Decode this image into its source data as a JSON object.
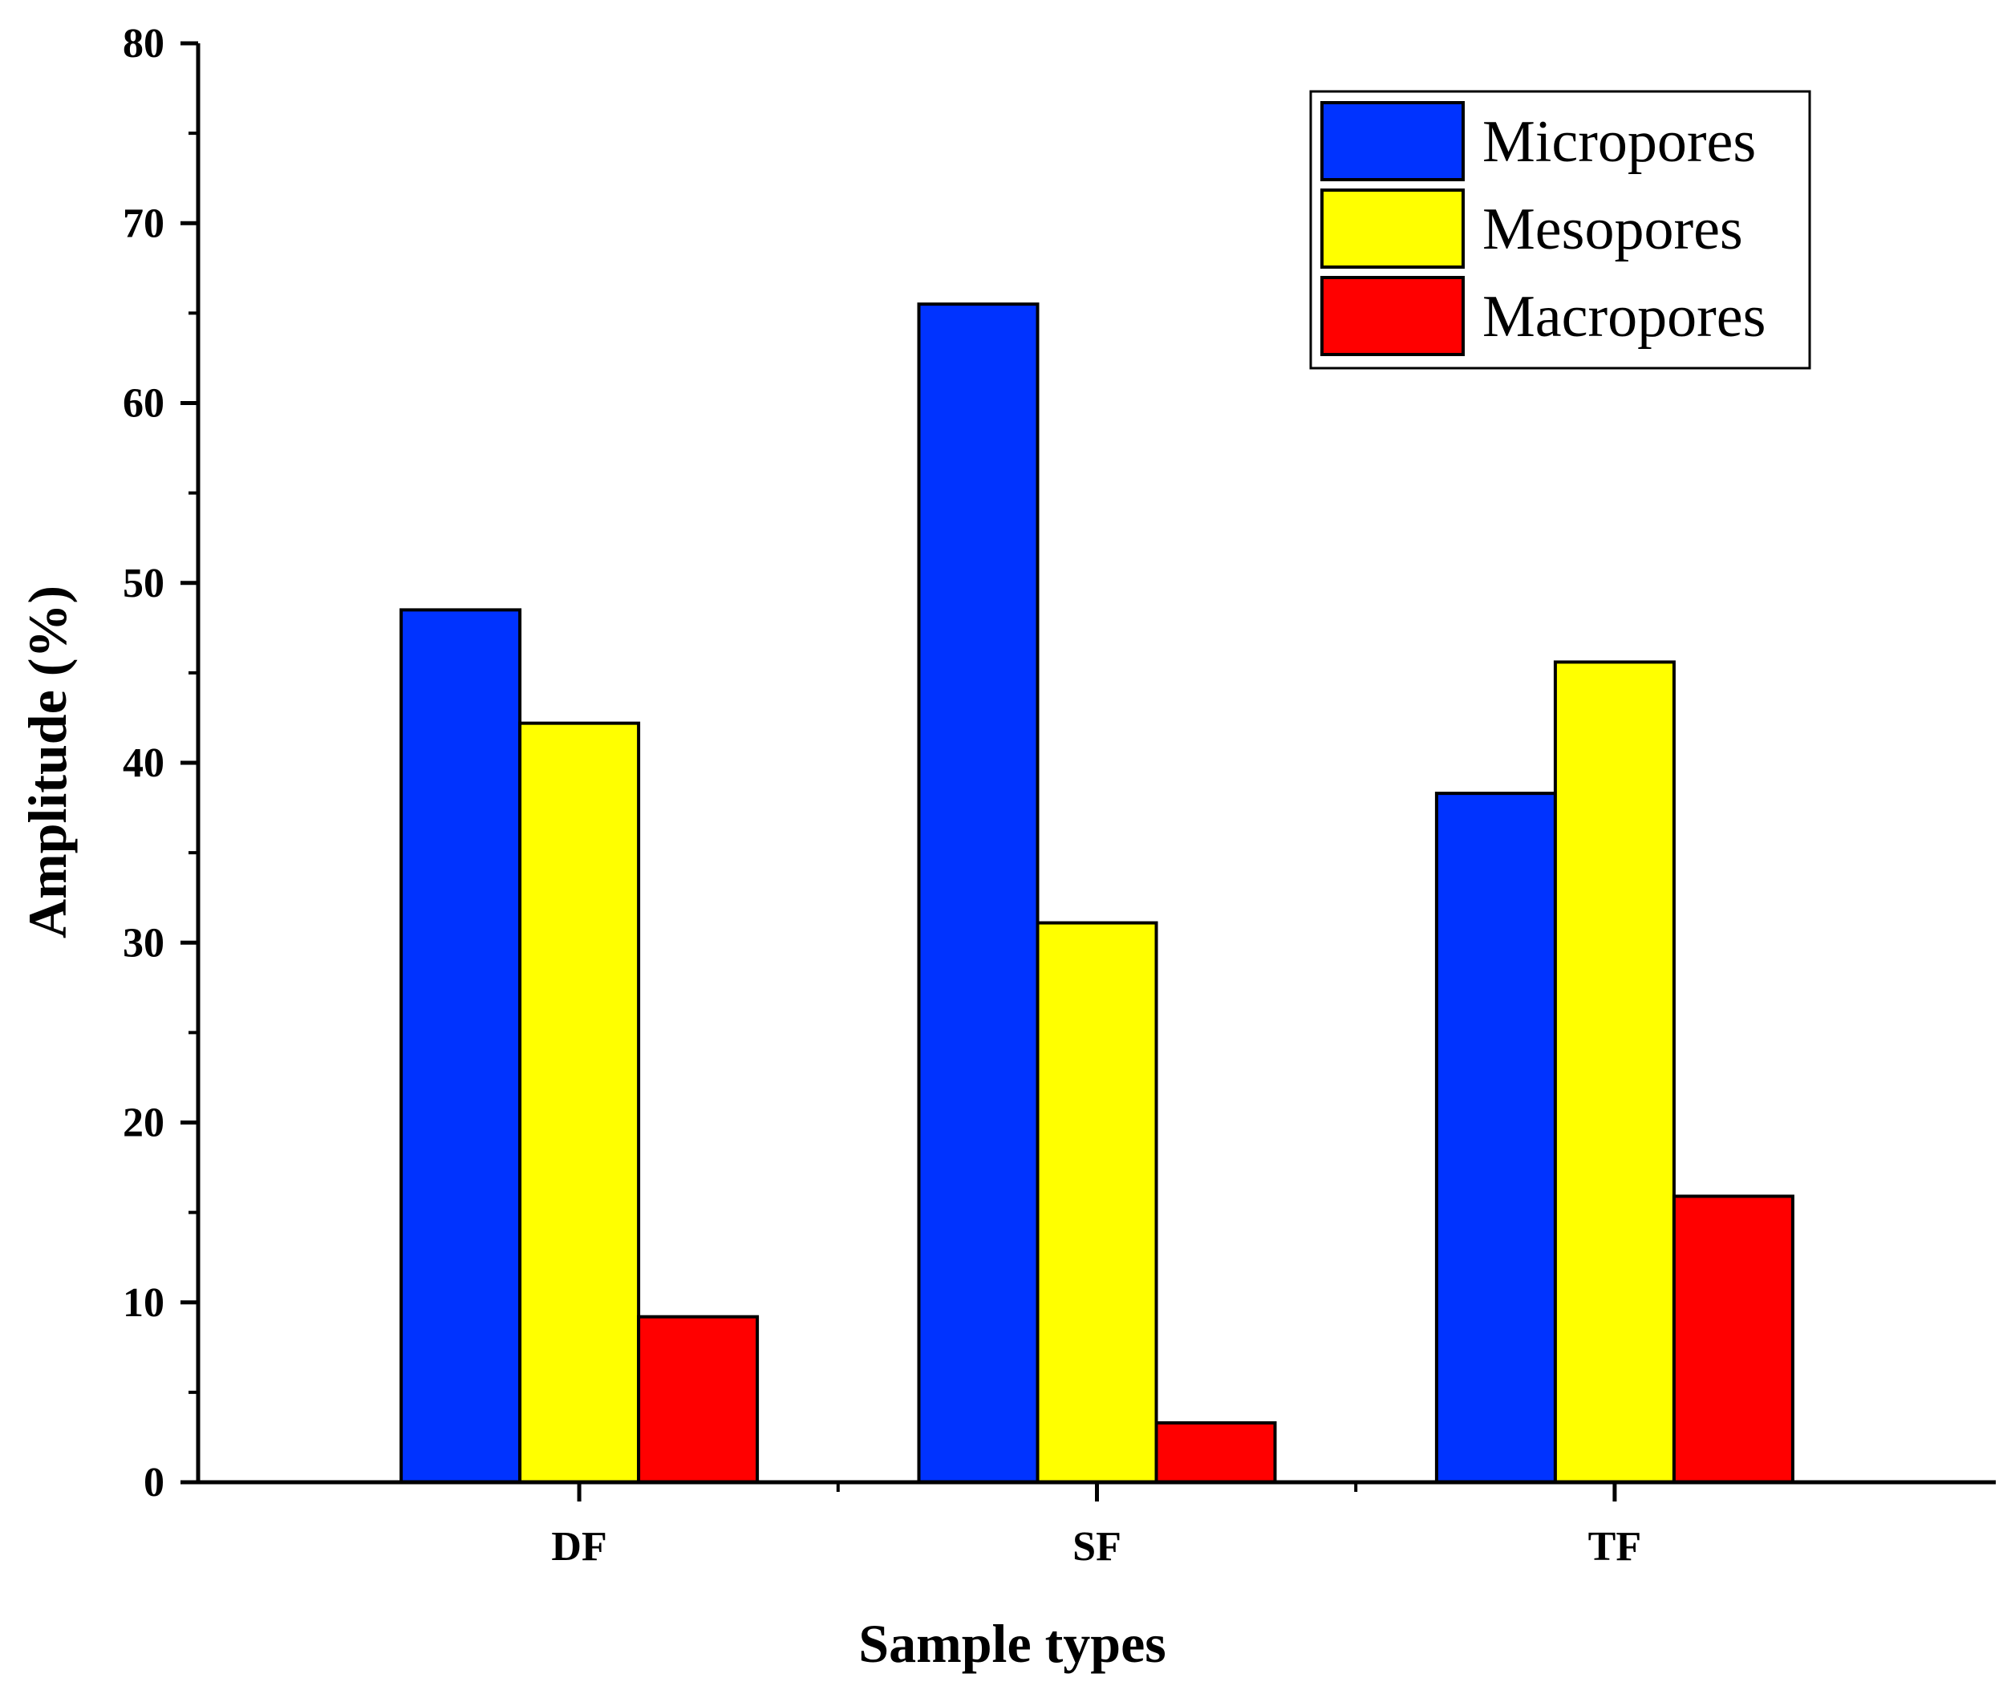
{
  "chart_data": {
    "type": "bar",
    "title": "",
    "xlabel": "Sample types",
    "ylabel": "Amplitude (%)",
    "categories": [
      "DF",
      "SF",
      "TF"
    ],
    "ylim": [
      0,
      80
    ],
    "yticks": [
      0,
      10,
      20,
      30,
      40,
      50,
      60,
      70,
      80
    ],
    "grid": false,
    "legend_position": "top-right",
    "series": [
      {
        "name": "Micropores",
        "color": "#0033FF",
        "values": [
          48.5,
          65.5,
          38.3
        ]
      },
      {
        "name": "Mesopores",
        "color": "#FFFF00",
        "values": [
          42.2,
          31.1,
          45.6
        ]
      },
      {
        "name": "Macropores",
        "color": "#FF0000",
        "values": [
          9.2,
          3.3,
          15.9
        ]
      }
    ]
  }
}
